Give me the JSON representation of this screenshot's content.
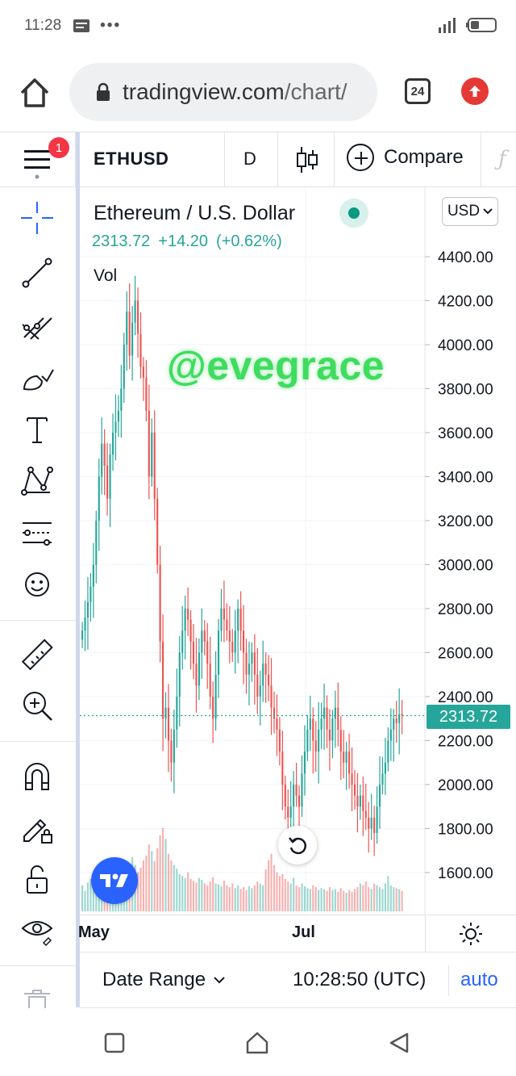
{
  "status_bar": {
    "time": "11:28",
    "dots": "•••"
  },
  "browser": {
    "url_domain": "tradingview.com",
    "url_path": "/chart/",
    "tab_count": "24"
  },
  "chart_header": {
    "notification_count": "1",
    "symbol": "ETHUSD",
    "interval": "D",
    "compare_label": "Compare"
  },
  "legend": {
    "name": "Ethereum / U.S. Dollar",
    "last_price": "2313.72",
    "change": "+14.20",
    "change_percent": "(+0.62%)",
    "vol_label": "Vol"
  },
  "watermark": "@evegrace",
  "currency": "USD",
  "price_tag": "2313.72",
  "time_axis": {
    "labels": [
      "May",
      "Jul"
    ]
  },
  "bottom_bar": {
    "date_range_label": "Date Range",
    "clock": "10:28:50 (UTC)",
    "scale_mode": "auto"
  },
  "colors": {
    "up": "#26a69a",
    "down": "#ef5350",
    "accent": "#2962ff",
    "watermark": "#3fdc5f"
  },
  "chart_data": {
    "type": "candlestick",
    "y_axis_ticks": [
      4400,
      4200,
      4000,
      3800,
      3600,
      3400,
      3200,
      3000,
      2800,
      2600,
      2400,
      2200,
      2000,
      1800,
      1600
    ],
    "y_axis_labels": [
      "4400.00",
      "4200.00",
      "4000.00",
      "3800.00",
      "3600.00",
      "3400.00",
      "3200.00",
      "3000.00",
      "2800.00",
      "2600.00",
      "2400.00",
      "2200.00",
      "2000.00",
      "1800.00",
      "1600.00"
    ],
    "last_price": 2313.72,
    "close_series": [
      2700,
      2760,
      2830,
      2900,
      3000,
      3200,
      3400,
      3550,
      3450,
      3300,
      3500,
      3600,
      3650,
      3700,
      3800,
      4000,
      4150,
      3950,
      4100,
      4200,
      4050,
      3900,
      3850,
      3700,
      3400,
      3600,
      3300,
      3000,
      2650,
      2300,
      2350,
      2200,
      2100,
      2250,
      2400,
      2600,
      2700,
      2800,
      2750,
      2650,
      2550,
      2450,
      2600,
      2700,
      2650,
      2550,
      2400,
      2300,
      2500,
      2700,
      2800,
      2750,
      2700,
      2650,
      2600,
      2700,
      2800,
      2700,
      2600,
      2500,
      2550,
      2600,
      2500,
      2400,
      2450,
      2550,
      2500,
      2450,
      2350,
      2300,
      2250,
      2150,
      2000,
      1900,
      1850,
      1900,
      2000,
      1950,
      1900,
      2050,
      2150,
      2250,
      2300,
      2200,
      2150,
      2250,
      2300,
      2350,
      2250,
      2200,
      2300,
      2350,
      2250,
      2150,
      2100,
      2150,
      2050,
      2000,
      1950,
      1900,
      1950,
      1880,
      1850,
      1800,
      1850,
      1780,
      1900,
      2000,
      2050,
      2100,
      2200,
      2250,
      2300,
      2280,
      2320,
      2314
    ],
    "volume_series": [
      0.28,
      0.22,
      0.31,
      0.35,
      0.25,
      0.3,
      0.4,
      0.33,
      0.38,
      0.42,
      0.36,
      0.3,
      0.34,
      0.45,
      0.4,
      0.48,
      0.52,
      0.44,
      0.58,
      0.5,
      0.42,
      0.47,
      0.55,
      0.6,
      0.72,
      0.65,
      0.54,
      0.68,
      0.82,
      0.9,
      0.78,
      0.62,
      0.55,
      0.5,
      0.46,
      0.4,
      0.38,
      0.36,
      0.42,
      0.35,
      0.33,
      0.31,
      0.36,
      0.34,
      0.3,
      0.28,
      0.32,
      0.37,
      0.3,
      0.29,
      0.27,
      0.33,
      0.28,
      0.26,
      0.3,
      0.25,
      0.28,
      0.24,
      0.26,
      0.23,
      0.27,
      0.25,
      0.28,
      0.32,
      0.3,
      0.28,
      0.45,
      0.55,
      0.62,
      0.5,
      0.42,
      0.38,
      0.4,
      0.35,
      0.32,
      0.3,
      0.36,
      0.28,
      0.26,
      0.3,
      0.27,
      0.25,
      0.24,
      0.28,
      0.26,
      0.23,
      0.25,
      0.24,
      0.22,
      0.26,
      0.23,
      0.24,
      0.21,
      0.25,
      0.22,
      0.2,
      0.23,
      0.21,
      0.24,
      0.26,
      0.3,
      0.28,
      0.32,
      0.26,
      0.24,
      0.3,
      0.28,
      0.26,
      0.24,
      0.3,
      0.38,
      0.28,
      0.26,
      0.25,
      0.24,
      0.22
    ]
  }
}
